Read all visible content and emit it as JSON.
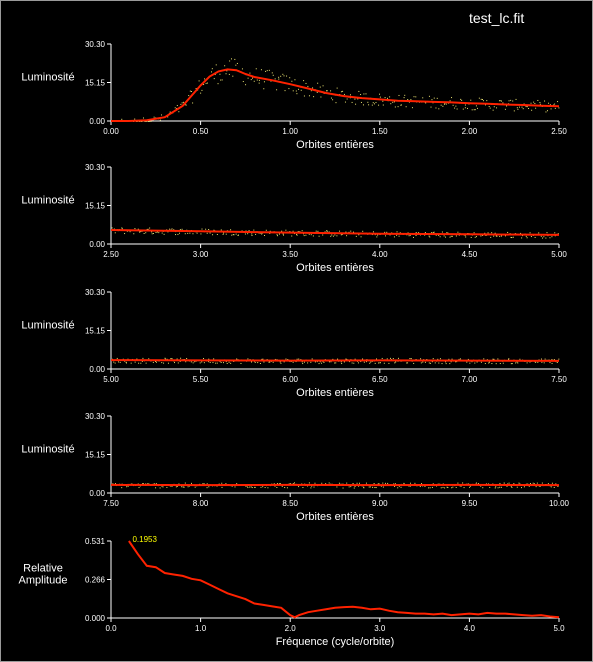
{
  "window_title": "test_lc.fit",
  "colors": {
    "background": "#000000",
    "model_line": "#ff2200",
    "points": "#e8e070",
    "axis": "#ffffff",
    "peak_label": "#ffff00"
  },
  "chart_data": [
    {
      "type": "scatter",
      "ylabel": "Luminosité",
      "xlabel": "Orbites entières",
      "xlim": [
        0.0,
        2.5
      ],
      "ylim": [
        0.0,
        30.3
      ],
      "xticks": [
        "0.00",
        "0.50",
        "1.00",
        "1.50",
        "2.00",
        "2.50"
      ],
      "yticks": [
        "0.00",
        "15.15",
        "30.30"
      ],
      "model_line": {
        "x": [
          0.0,
          0.1,
          0.2,
          0.3,
          0.4,
          0.5,
          0.55,
          0.6,
          0.65,
          0.7,
          0.75,
          0.8,
          0.9,
          1.0,
          1.1,
          1.2,
          1.3,
          1.4,
          1.5,
          1.6,
          1.7,
          1.8,
          1.9,
          2.0,
          2.1,
          2.2,
          2.3,
          2.4,
          2.5
        ],
        "y": [
          0.0,
          0.0,
          0.3,
          1.5,
          6.0,
          14.0,
          17.5,
          19.5,
          20.3,
          20.0,
          18.5,
          17.3,
          16.0,
          14.5,
          12.8,
          11.0,
          9.8,
          9.0,
          8.5,
          8.0,
          7.8,
          7.5,
          7.3,
          7.0,
          6.8,
          6.5,
          6.3,
          6.0,
          5.8
        ]
      },
      "scatter_spread": 2.5
    },
    {
      "type": "scatter",
      "ylabel": "Luminosité",
      "xlabel": "Orbites entières",
      "xlim": [
        2.5,
        5.0
      ],
      "ylim": [
        0.0,
        30.3
      ],
      "xticks": [
        "2.50",
        "3.00",
        "3.50",
        "4.00",
        "4.50",
        "5.00"
      ],
      "yticks": [
        "0.00",
        "15.15",
        "30.30"
      ],
      "model_line": {
        "x": [
          2.5,
          3.0,
          3.5,
          4.0,
          4.5,
          5.0
        ],
        "y": [
          5.5,
          5.0,
          4.5,
          4.0,
          3.8,
          3.6
        ]
      },
      "scatter_spread": 1.5
    },
    {
      "type": "scatter",
      "ylabel": "Luminosité",
      "xlabel": "Orbites entières",
      "xlim": [
        5.0,
        7.5
      ],
      "ylim": [
        0.0,
        30.3
      ],
      "xticks": [
        "5.00",
        "5.50",
        "6.00",
        "6.50",
        "7.00",
        "7.50"
      ],
      "yticks": [
        "0.00",
        "15.15",
        "30.30"
      ],
      "model_line": {
        "x": [
          5.0,
          5.5,
          6.0,
          6.5,
          7.0,
          7.5
        ],
        "y": [
          3.5,
          3.4,
          3.3,
          3.4,
          3.3,
          3.2
        ]
      },
      "scatter_spread": 1.4
    },
    {
      "type": "scatter",
      "ylabel": "Luminosité",
      "xlabel": "Orbites entières",
      "xlim": [
        7.5,
        10.0
      ],
      "ylim": [
        0.0,
        30.3
      ],
      "xticks": [
        "7.50",
        "8.00",
        "8.50",
        "9.00",
        "9.50",
        "10.00"
      ],
      "yticks": [
        "0.00",
        "15.15",
        "30.30"
      ],
      "model_line": {
        "x": [
          7.5,
          8.0,
          8.5,
          9.0,
          9.5,
          10.0
        ],
        "y": [
          3.2,
          3.1,
          3.2,
          3.1,
          3.2,
          3.1
        ]
      },
      "scatter_spread": 1.4
    },
    {
      "type": "line",
      "ylabel_lines": [
        "Relative",
        "Amplitude"
      ],
      "xlabel": "Fréquence (cycle/orbite)",
      "xlim": [
        0.0,
        5.0
      ],
      "ylim": [
        0.0,
        0.531
      ],
      "xticks": [
        "0.0",
        "1.0",
        "2.0",
        "3.0",
        "4.0",
        "5.0"
      ],
      "yticks": [
        "0.000",
        "0.266",
        "0.531"
      ],
      "peak_label": "0.1953",
      "peak": {
        "x": 0.1953,
        "y": 0.531
      },
      "x": [
        0.2,
        0.3,
        0.4,
        0.5,
        0.6,
        0.7,
        0.8,
        0.9,
        1.0,
        1.1,
        1.2,
        1.3,
        1.4,
        1.5,
        1.6,
        1.7,
        1.8,
        1.9,
        2.0,
        2.05,
        2.1,
        2.2,
        2.3,
        2.4,
        2.5,
        2.6,
        2.7,
        2.8,
        2.9,
        3.0,
        3.1,
        3.2,
        3.3,
        3.4,
        3.5,
        3.6,
        3.7,
        3.8,
        3.9,
        4.0,
        4.1,
        4.2,
        4.3,
        4.4,
        4.5,
        4.6,
        4.7,
        4.8,
        4.9,
        5.0
      ],
      "y": [
        0.531,
        0.44,
        0.36,
        0.35,
        0.31,
        0.3,
        0.29,
        0.27,
        0.26,
        0.23,
        0.2,
        0.17,
        0.15,
        0.13,
        0.1,
        0.09,
        0.08,
        0.07,
        0.02,
        0.005,
        0.02,
        0.04,
        0.05,
        0.06,
        0.07,
        0.075,
        0.078,
        0.07,
        0.06,
        0.065,
        0.05,
        0.04,
        0.035,
        0.03,
        0.03,
        0.025,
        0.03,
        0.02,
        0.025,
        0.03,
        0.025,
        0.035,
        0.03,
        0.03,
        0.025,
        0.02,
        0.015,
        0.02,
        0.01,
        0.005
      ]
    }
  ]
}
